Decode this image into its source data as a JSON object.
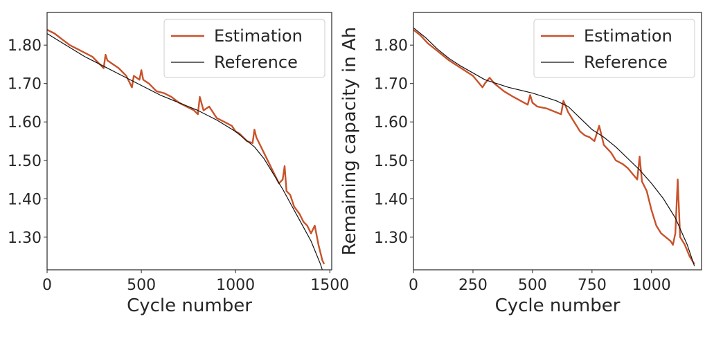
{
  "chart_data": [
    {
      "type": "line",
      "xlabel": "Cycle number",
      "ylabel": "",
      "xlim": [
        0,
        1510
      ],
      "ylim": [
        1.215,
        1.885
      ],
      "xticks": [
        0,
        500,
        1000,
        1500
      ],
      "yticks": [
        1.3,
        1.4,
        1.5,
        1.6,
        1.7,
        1.8
      ],
      "ytick_labels": [
        "1.30",
        "1.40",
        "1.50",
        "1.60",
        "1.70",
        "1.80"
      ],
      "grid": false,
      "legend": "top-right",
      "series": [
        {
          "name": "Estimation",
          "color": "#c8522a",
          "x": [
            0,
            40,
            80,
            120,
            160,
            200,
            240,
            280,
            300,
            310,
            320,
            350,
            380,
            420,
            440,
            450,
            460,
            490,
            500,
            510,
            540,
            580,
            620,
            660,
            700,
            740,
            780,
            800,
            810,
            830,
            860,
            900,
            940,
            980,
            1000,
            1020,
            1060,
            1090,
            1100,
            1110,
            1140,
            1170,
            1200,
            1230,
            1250,
            1260,
            1270,
            1290,
            1310,
            1340,
            1360,
            1380,
            1400,
            1420,
            1440,
            1460,
            1470
          ],
          "y": [
            1.84,
            1.83,
            1.815,
            1.8,
            1.79,
            1.78,
            1.77,
            1.75,
            1.74,
            1.775,
            1.76,
            1.75,
            1.74,
            1.72,
            1.7,
            1.69,
            1.72,
            1.71,
            1.735,
            1.71,
            1.7,
            1.68,
            1.675,
            1.665,
            1.65,
            1.64,
            1.63,
            1.62,
            1.665,
            1.63,
            1.64,
            1.61,
            1.6,
            1.59,
            1.575,
            1.57,
            1.55,
            1.545,
            1.58,
            1.56,
            1.53,
            1.5,
            1.47,
            1.44,
            1.45,
            1.485,
            1.42,
            1.41,
            1.38,
            1.36,
            1.34,
            1.33,
            1.31,
            1.33,
            1.28,
            1.24,
            1.23
          ]
        },
        {
          "name": "Reference",
          "color": "#111111",
          "x": [
            0,
            100,
            200,
            300,
            400,
            500,
            600,
            700,
            800,
            900,
            1000,
            1050,
            1100,
            1150,
            1200,
            1250,
            1300,
            1350,
            1400,
            1450,
            1460
          ],
          "y": [
            1.83,
            1.8,
            1.77,
            1.745,
            1.72,
            1.695,
            1.67,
            1.65,
            1.63,
            1.605,
            1.575,
            1.555,
            1.535,
            1.505,
            1.465,
            1.425,
            1.38,
            1.335,
            1.29,
            1.23,
            1.215
          ]
        }
      ]
    },
    {
      "type": "line",
      "xlabel": "Cycle number",
      "ylabel": "Remaining capacity in Ah",
      "xlim": [
        0,
        1210
      ],
      "ylim": [
        1.215,
        1.885
      ],
      "xticks": [
        0,
        250,
        500,
        750,
        1000
      ],
      "yticks": [
        1.3,
        1.4,
        1.5,
        1.6,
        1.7,
        1.8
      ],
      "ytick_labels": [
        "1.30",
        "1.40",
        "1.50",
        "1.60",
        "1.70",
        "1.80"
      ],
      "grid": false,
      "legend": "top-right",
      "series": [
        {
          "name": "Estimation",
          "color": "#c8522a",
          "x": [
            0,
            30,
            60,
            100,
            150,
            200,
            250,
            290,
            300,
            320,
            340,
            380,
            420,
            450,
            480,
            490,
            500,
            520,
            560,
            600,
            620,
            630,
            650,
            680,
            700,
            720,
            740,
            760,
            780,
            800,
            830,
            850,
            880,
            900,
            940,
            950,
            960,
            980,
            1000,
            1020,
            1040,
            1060,
            1080,
            1090,
            1100,
            1110,
            1120,
            1140,
            1160,
            1180
          ],
          "y": [
            1.84,
            1.825,
            1.805,
            1.785,
            1.76,
            1.74,
            1.72,
            1.69,
            1.7,
            1.715,
            1.7,
            1.68,
            1.665,
            1.655,
            1.645,
            1.67,
            1.65,
            1.64,
            1.635,
            1.625,
            1.62,
            1.655,
            1.625,
            1.595,
            1.575,
            1.565,
            1.56,
            1.55,
            1.59,
            1.54,
            1.52,
            1.5,
            1.49,
            1.48,
            1.45,
            1.51,
            1.445,
            1.42,
            1.37,
            1.33,
            1.31,
            1.3,
            1.29,
            1.28,
            1.31,
            1.45,
            1.3,
            1.28,
            1.25,
            1.23
          ]
        },
        {
          "name": "Reference",
          "color": "#111111",
          "x": [
            0,
            50,
            100,
            150,
            200,
            300,
            400,
            500,
            550,
            600,
            650,
            700,
            750,
            800,
            850,
            900,
            950,
            1000,
            1050,
            1100,
            1150,
            1180
          ],
          "y": [
            1.845,
            1.82,
            1.79,
            1.765,
            1.745,
            1.71,
            1.69,
            1.675,
            1.665,
            1.655,
            1.64,
            1.61,
            1.58,
            1.56,
            1.535,
            1.505,
            1.475,
            1.44,
            1.4,
            1.35,
            1.28,
            1.225
          ]
        }
      ]
    }
  ]
}
